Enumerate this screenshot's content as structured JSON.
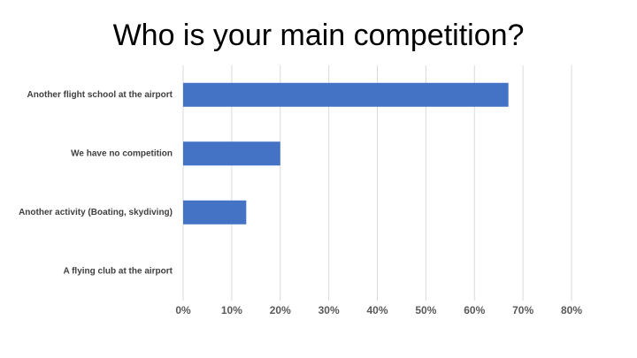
{
  "chart_data": {
    "type": "barh",
    "title": "Who is your main competition?",
    "categories": [
      "Another flight school at the airport",
      "We have no competition",
      "Another activity (Boating, skydiving)",
      "A flying club at the airport"
    ],
    "values": [
      67,
      20,
      13,
      0
    ],
    "color": "#4472c4",
    "xlim": [
      0,
      80
    ],
    "xticks": [
      {
        "value": 0,
        "label": "0%"
      },
      {
        "value": 10,
        "label": "10%"
      },
      {
        "value": 20,
        "label": "20%"
      },
      {
        "value": 30,
        "label": "30%"
      },
      {
        "value": 40,
        "label": "40%"
      },
      {
        "value": 50,
        "label": "50%"
      },
      {
        "value": 60,
        "label": "60%"
      },
      {
        "value": 70,
        "label": "70%"
      },
      {
        "value": 80,
        "label": "80%"
      }
    ],
    "grid": true
  }
}
